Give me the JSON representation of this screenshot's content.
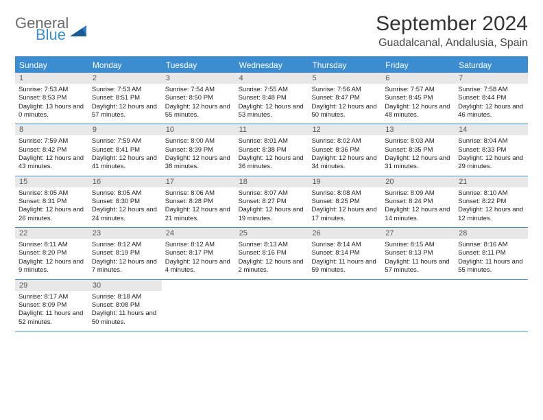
{
  "logo": {
    "line1": "General",
    "line2": "Blue"
  },
  "title": "September 2024",
  "location": "Guadalcanal, Andalusia, Spain",
  "colors": {
    "header_bg": "#3b8dd0",
    "header_text": "#ffffff",
    "daynum_bg": "#e8e8e8",
    "daynum_text": "#555555",
    "body_text": "#222222",
    "border": "#3b8dd0",
    "logo_gray": "#6b6b6b",
    "logo_blue": "#3b8dd0",
    "page_bg": "#ffffff"
  },
  "weekdays": [
    "Sunday",
    "Monday",
    "Tuesday",
    "Wednesday",
    "Thursday",
    "Friday",
    "Saturday"
  ],
  "days": [
    {
      "n": 1,
      "sunrise": "7:53 AM",
      "sunset": "8:53 PM",
      "daylight": "13 hours and 0 minutes."
    },
    {
      "n": 2,
      "sunrise": "7:53 AM",
      "sunset": "8:51 PM",
      "daylight": "12 hours and 57 minutes."
    },
    {
      "n": 3,
      "sunrise": "7:54 AM",
      "sunset": "8:50 PM",
      "daylight": "12 hours and 55 minutes."
    },
    {
      "n": 4,
      "sunrise": "7:55 AM",
      "sunset": "8:48 PM",
      "daylight": "12 hours and 53 minutes."
    },
    {
      "n": 5,
      "sunrise": "7:56 AM",
      "sunset": "8:47 PM",
      "daylight": "12 hours and 50 minutes."
    },
    {
      "n": 6,
      "sunrise": "7:57 AM",
      "sunset": "8:45 PM",
      "daylight": "12 hours and 48 minutes."
    },
    {
      "n": 7,
      "sunrise": "7:58 AM",
      "sunset": "8:44 PM",
      "daylight": "12 hours and 46 minutes."
    },
    {
      "n": 8,
      "sunrise": "7:59 AM",
      "sunset": "8:42 PM",
      "daylight": "12 hours and 43 minutes."
    },
    {
      "n": 9,
      "sunrise": "7:59 AM",
      "sunset": "8:41 PM",
      "daylight": "12 hours and 41 minutes."
    },
    {
      "n": 10,
      "sunrise": "8:00 AM",
      "sunset": "8:39 PM",
      "daylight": "12 hours and 38 minutes."
    },
    {
      "n": 11,
      "sunrise": "8:01 AM",
      "sunset": "8:38 PM",
      "daylight": "12 hours and 36 minutes."
    },
    {
      "n": 12,
      "sunrise": "8:02 AM",
      "sunset": "8:36 PM",
      "daylight": "12 hours and 34 minutes."
    },
    {
      "n": 13,
      "sunrise": "8:03 AM",
      "sunset": "8:35 PM",
      "daylight": "12 hours and 31 minutes."
    },
    {
      "n": 14,
      "sunrise": "8:04 AM",
      "sunset": "8:33 PM",
      "daylight": "12 hours and 29 minutes."
    },
    {
      "n": 15,
      "sunrise": "8:05 AM",
      "sunset": "8:31 PM",
      "daylight": "12 hours and 26 minutes."
    },
    {
      "n": 16,
      "sunrise": "8:05 AM",
      "sunset": "8:30 PM",
      "daylight": "12 hours and 24 minutes."
    },
    {
      "n": 17,
      "sunrise": "8:06 AM",
      "sunset": "8:28 PM",
      "daylight": "12 hours and 21 minutes."
    },
    {
      "n": 18,
      "sunrise": "8:07 AM",
      "sunset": "8:27 PM",
      "daylight": "12 hours and 19 minutes."
    },
    {
      "n": 19,
      "sunrise": "8:08 AM",
      "sunset": "8:25 PM",
      "daylight": "12 hours and 17 minutes."
    },
    {
      "n": 20,
      "sunrise": "8:09 AM",
      "sunset": "8:24 PM",
      "daylight": "12 hours and 14 minutes."
    },
    {
      "n": 21,
      "sunrise": "8:10 AM",
      "sunset": "8:22 PM",
      "daylight": "12 hours and 12 minutes."
    },
    {
      "n": 22,
      "sunrise": "8:11 AM",
      "sunset": "8:20 PM",
      "daylight": "12 hours and 9 minutes."
    },
    {
      "n": 23,
      "sunrise": "8:12 AM",
      "sunset": "8:19 PM",
      "daylight": "12 hours and 7 minutes."
    },
    {
      "n": 24,
      "sunrise": "8:12 AM",
      "sunset": "8:17 PM",
      "daylight": "12 hours and 4 minutes."
    },
    {
      "n": 25,
      "sunrise": "8:13 AM",
      "sunset": "8:16 PM",
      "daylight": "12 hours and 2 minutes."
    },
    {
      "n": 26,
      "sunrise": "8:14 AM",
      "sunset": "8:14 PM",
      "daylight": "11 hours and 59 minutes."
    },
    {
      "n": 27,
      "sunrise": "8:15 AM",
      "sunset": "8:13 PM",
      "daylight": "11 hours and 57 minutes."
    },
    {
      "n": 28,
      "sunrise": "8:16 AM",
      "sunset": "8:11 PM",
      "daylight": "11 hours and 55 minutes."
    },
    {
      "n": 29,
      "sunrise": "8:17 AM",
      "sunset": "8:09 PM",
      "daylight": "11 hours and 52 minutes."
    },
    {
      "n": 30,
      "sunrise": "8:18 AM",
      "sunset": "8:08 PM",
      "daylight": "11 hours and 50 minutes."
    }
  ],
  "labels": {
    "sunrise_prefix": "Sunrise: ",
    "sunset_prefix": "Sunset: ",
    "daylight_prefix": "Daylight: "
  },
  "layout": {
    "start_weekday_index": 0,
    "total_cells": 35
  }
}
